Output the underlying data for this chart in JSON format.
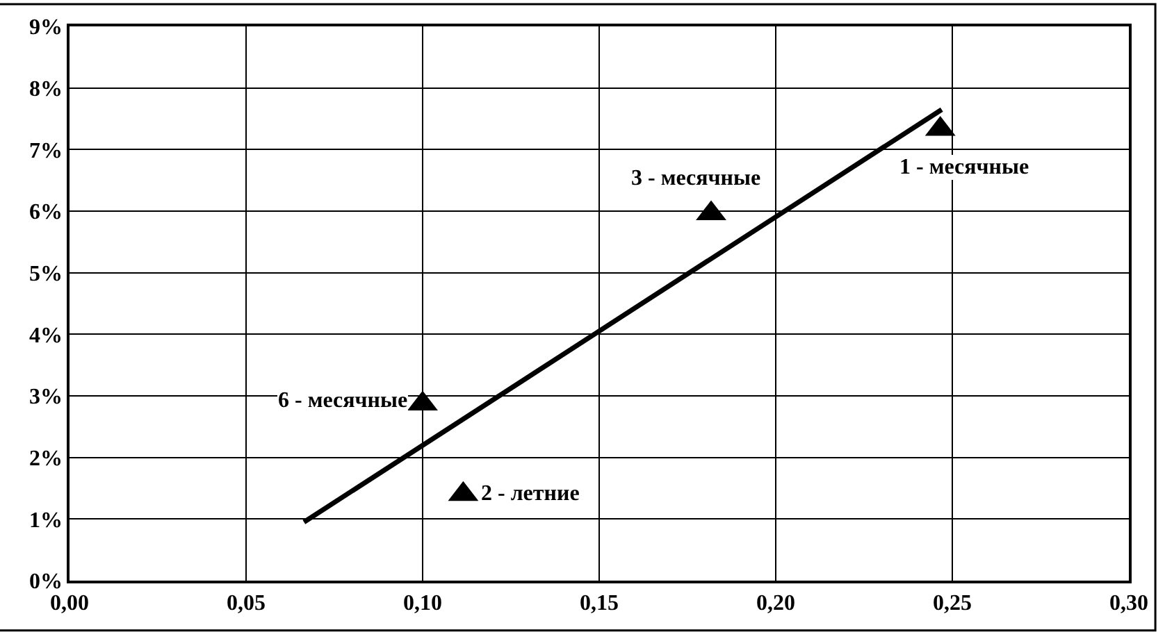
{
  "chart_data": {
    "type": "scatter",
    "series": [
      {
        "color": "#000000",
        "marker": "triangle",
        "x": [
          0.2466,
          0.1115,
          0.1817,
          0.1
        ],
        "values": [
          7.33,
          1.4,
          5.96,
          2.87
        ]
      },
      {
        "type": "line",
        "color": "#000000",
        "marker": "none",
        "line_style": "solid",
        "x": [
          0.0664,
          0.247
        ],
        "values": [
          0.95,
          7.65
        ]
      }
    ],
    "annotations": [
      {
        "text": "1 - месячные",
        "x": 0.2466,
        "y": 7.33
      },
      {
        "text": "2 - летние",
        "x": 0.1115,
        "y": 1.4
      },
      {
        "text": "3 - месячные",
        "x": 0.1817,
        "y": 5.96
      },
      {
        "text": "6 - месячные",
        "x": 0.1,
        "y": 2.87
      }
    ],
    "xlim": [
      0,
      0.3
    ],
    "ylim": [
      0,
      9
    ],
    "xticks": [
      {
        "value": 0,
        "label": "0,00"
      },
      {
        "value": 0.05,
        "label": "0,05"
      },
      {
        "value": 0.1,
        "label": "0,10"
      },
      {
        "value": 0.15,
        "label": "0,15"
      },
      {
        "value": 0.2,
        "label": "0,20"
      },
      {
        "value": 0.25,
        "label": "0,25"
      },
      {
        "value": 0.3,
        "label": "0,30"
      }
    ],
    "yticks": [
      {
        "value": 0,
        "label": "0%"
      },
      {
        "value": 1,
        "label": "1%"
      },
      {
        "value": 2,
        "label": "2%"
      },
      {
        "value": 3,
        "label": "3%"
      },
      {
        "value": 4,
        "label": "4%"
      },
      {
        "value": 5,
        "label": "5%"
      },
      {
        "value": 6,
        "label": "6%"
      },
      {
        "value": 7,
        "label": "7%"
      },
      {
        "value": 8,
        "label": "8%"
      },
      {
        "value": 9,
        "label": "9%"
      }
    ],
    "grid": true,
    "legend": false
  }
}
